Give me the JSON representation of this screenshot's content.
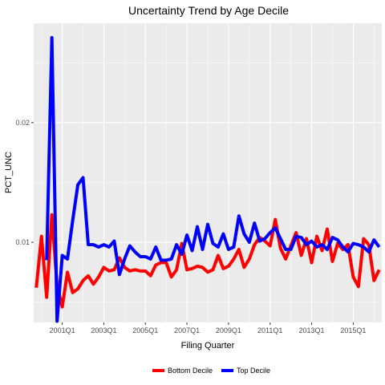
{
  "chart_data": {
    "type": "line",
    "title": "Uncertainty Trend by Age Decile",
    "xlabel": "Filing Quarter",
    "ylabel": "PCT_UNC",
    "x_axis": {
      "type": "quarter-index",
      "range": [
        1999.625,
        2016.375
      ],
      "ticks": [
        2001.0,
        2003.0,
        2005.0,
        2007.0,
        2009.0,
        2011.0,
        2013.0,
        2015.0
      ],
      "tick_labels": [
        "2001Q1",
        "2003Q1",
        "2005Q1",
        "2007Q1",
        "2009Q1",
        "2011Q1",
        "2013Q1",
        "2015Q1"
      ]
    },
    "y_axis": {
      "range": [
        0.0033,
        0.0283
      ],
      "ticks": [
        0.01,
        0.02
      ],
      "tick_labels": [
        "0.01",
        "0.02"
      ]
    },
    "grid": true,
    "legend_position": "bottom",
    "series": [
      {
        "name": "Bottom Decile",
        "color": "#ff0000",
        "x": [
          1999.75,
          2000.0,
          2000.25,
          2000.5,
          2000.75,
          2001.0,
          2001.25,
          2001.5,
          2001.75,
          2002.0,
          2002.25,
          2002.5,
          2002.75,
          2003.0,
          2003.25,
          2003.5,
          2003.75,
          2004.0,
          2004.25,
          2004.5,
          2004.75,
          2005.0,
          2005.25,
          2005.5,
          2005.75,
          2006.0,
          2006.25,
          2006.5,
          2006.75,
          2007.0,
          2007.25,
          2007.5,
          2007.75,
          2008.0,
          2008.25,
          2008.5,
          2008.75,
          2009.0,
          2009.25,
          2009.5,
          2009.75,
          2010.0,
          2010.25,
          2010.5,
          2010.75,
          2011.0,
          2011.25,
          2011.5,
          2011.75,
          2012.0,
          2012.25,
          2012.5,
          2012.75,
          2013.0,
          2013.25,
          2013.5,
          2013.75,
          2014.0,
          2014.25,
          2014.5,
          2014.75,
          2015.0,
          2015.25,
          2015.5,
          2015.75,
          2016.0,
          2016.25
        ],
        "values": [
          0.0062,
          0.0105,
          0.0054,
          0.0123,
          0.0064,
          0.0046,
          0.0075,
          0.0058,
          0.0061,
          0.0068,
          0.0072,
          0.0065,
          0.0071,
          0.0079,
          0.0076,
          0.0077,
          0.0087,
          0.0079,
          0.0076,
          0.0077,
          0.0076,
          0.0076,
          0.0072,
          0.0081,
          0.0083,
          0.0083,
          0.0071,
          0.0077,
          0.0099,
          0.0077,
          0.0078,
          0.008,
          0.0079,
          0.0075,
          0.0077,
          0.0089,
          0.0078,
          0.008,
          0.0086,
          0.0094,
          0.0079,
          0.0086,
          0.0098,
          0.0104,
          0.0101,
          0.0097,
          0.0119,
          0.0095,
          0.0086,
          0.0097,
          0.0108,
          0.0089,
          0.0103,
          0.0083,
          0.0105,
          0.0093,
          0.0111,
          0.0084,
          0.0099,
          0.0094,
          0.0098,
          0.0071,
          0.0063,
          0.0103,
          0.0098,
          0.0068,
          0.0077
        ]
      },
      {
        "name": "Top Decile",
        "color": "#0000ff",
        "x": [
          2000.25,
          2000.5,
          2000.75,
          2001.0,
          2001.25,
          2001.5,
          2001.75,
          2002.0,
          2002.25,
          2002.5,
          2002.75,
          2003.0,
          2003.25,
          2003.5,
          2003.75,
          2004.0,
          2004.25,
          2004.5,
          2004.75,
          2005.0,
          2005.25,
          2005.5,
          2005.75,
          2006.0,
          2006.25,
          2006.5,
          2006.75,
          2007.0,
          2007.25,
          2007.5,
          2007.75,
          2008.0,
          2008.25,
          2008.5,
          2008.75,
          2009.0,
          2009.25,
          2009.5,
          2009.75,
          2010.0,
          2010.25,
          2010.5,
          2010.75,
          2011.0,
          2011.25,
          2011.5,
          2011.75,
          2012.0,
          2012.25,
          2012.5,
          2012.75,
          2013.0,
          2013.25,
          2013.5,
          2013.75,
          2014.0,
          2014.25,
          2014.5,
          2014.75,
          2015.0,
          2015.25,
          2015.5,
          2015.75,
          2016.0,
          2016.25
        ],
        "values": [
          0.0085,
          0.0271,
          0.0034,
          0.0089,
          0.0086,
          0.0118,
          0.0148,
          0.0154,
          0.0098,
          0.0098,
          0.0096,
          0.0098,
          0.0096,
          0.0101,
          0.0073,
          0.0086,
          0.0097,
          0.0092,
          0.0088,
          0.0088,
          0.0086,
          0.0096,
          0.0085,
          0.0085,
          0.0086,
          0.0098,
          0.009,
          0.0106,
          0.0093,
          0.0113,
          0.0094,
          0.0115,
          0.0099,
          0.0096,
          0.0107,
          0.0094,
          0.0096,
          0.0122,
          0.0107,
          0.01,
          0.0116,
          0.0101,
          0.0103,
          0.0108,
          0.0112,
          0.0103,
          0.0094,
          0.0094,
          0.0105,
          0.0104,
          0.0098,
          0.0101,
          0.0096,
          0.0098,
          0.0094,
          0.0104,
          0.0102,
          0.0096,
          0.0092,
          0.0099,
          0.0098,
          0.0096,
          0.0092,
          0.0102,
          0.0096
        ]
      }
    ]
  }
}
